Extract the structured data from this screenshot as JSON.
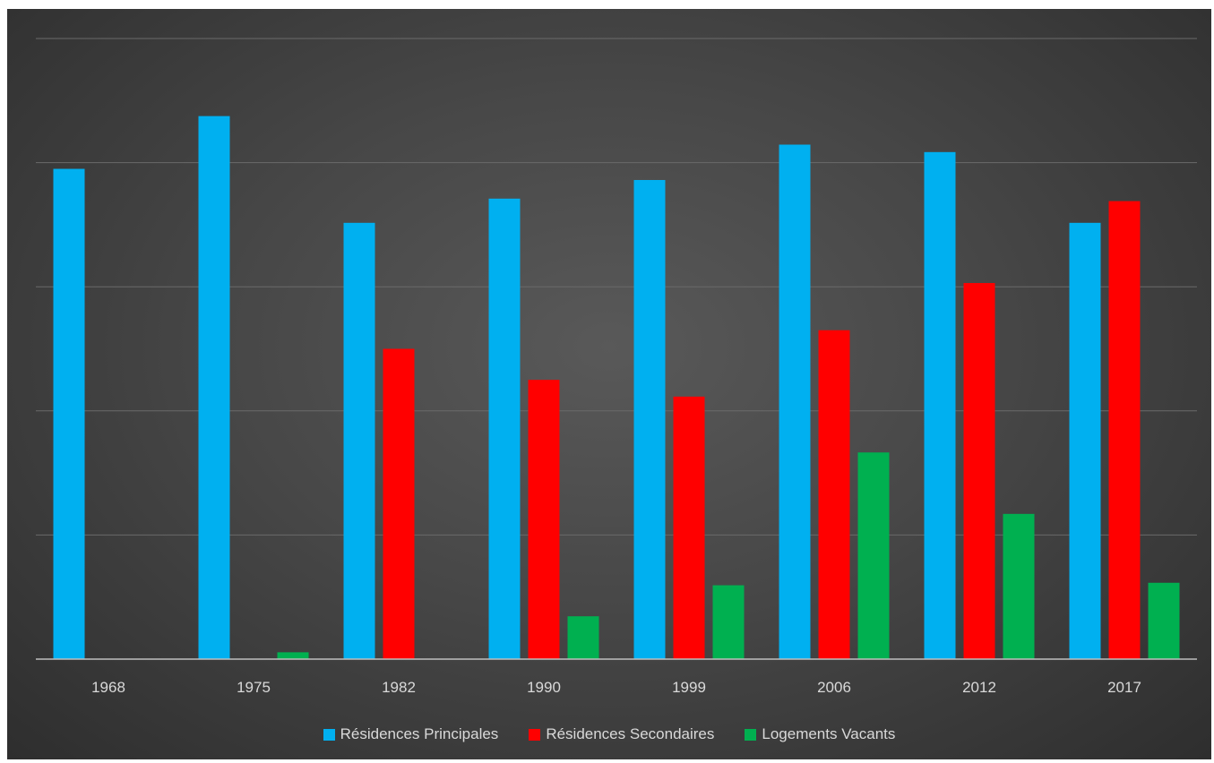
{
  "chart_data": {
    "type": "bar",
    "categories": [
      "1968",
      "1975",
      "1982",
      "1990",
      "1999",
      "2006",
      "2012",
      "2017"
    ],
    "series": [
      {
        "name": "Résidences Principales",
        "color": "#00b0f0",
        "values": [
          79,
          87.5,
          70.3,
          74.2,
          77.2,
          82.9,
          81.7,
          70.3
        ]
      },
      {
        "name": "Résidences Secondaires",
        "color": "#ff0000",
        "values": [
          0,
          0,
          50,
          45,
          42.3,
          53,
          60.6,
          73.8
        ]
      },
      {
        "name": "Logements Vacants",
        "color": "#00b050",
        "values": [
          0,
          1.1,
          0,
          6.9,
          11.9,
          33.3,
          23.4,
          12.3
        ]
      }
    ],
    "ylim": [
      0,
      100
    ],
    "grid": true,
    "legend_position": "bottom",
    "title": "",
    "xlabel": "",
    "ylabel": ""
  }
}
